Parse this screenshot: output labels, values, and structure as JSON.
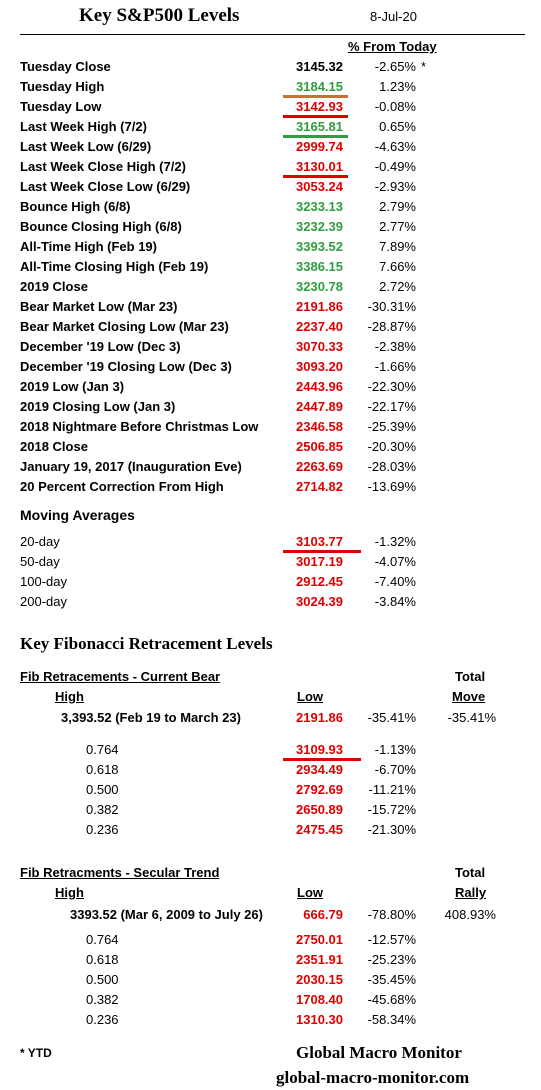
{
  "header": {
    "title": "Key S&P500 Levels",
    "date": "8-Jul-20",
    "pct_header": "% From Today"
  },
  "levels": [
    {
      "label": "Tuesday Close",
      "value": "3145.32",
      "pct": "-2.65%",
      "note": "*",
      "color": "black",
      "underline": ""
    },
    {
      "label": "Tuesday High",
      "value": "3184.15",
      "pct": "1.23%",
      "color": "green",
      "underline": "#c87137"
    },
    {
      "label": "Tuesday Low",
      "value": "3142.93",
      "pct": "-0.08%",
      "color": "red",
      "underline": "#e00000"
    },
    {
      "label": "Last Week High (7/2)",
      "value": "3165.81",
      "pct": "0.65%",
      "color": "green",
      "underline": "#2e9e3e"
    },
    {
      "label": "Last Week Low  (6/29)",
      "value": "2999.74",
      "pct": "-4.63%",
      "color": "red",
      "underline": ""
    },
    {
      "label": "Last Week Close High (7/2)",
      "value": "3130.01",
      "pct": "-0.49%",
      "color": "red",
      "underline": "#e00000"
    },
    {
      "label": "Last Week Close Low  (6/29)",
      "value": "3053.24",
      "pct": "-2.93%",
      "color": "red",
      "underline": ""
    },
    {
      "label": "Bounce High (6/8)",
      "value": "3233.13",
      "pct": "2.79%",
      "color": "green",
      "underline": ""
    },
    {
      "label": "Bounce Closing High  (6/8)",
      "value": "3232.39",
      "pct": "2.77%",
      "color": "green",
      "underline": ""
    },
    {
      "label": "All-Time High (Feb 19)",
      "value": "3393.52",
      "pct": "7.89%",
      "color": "green",
      "underline": ""
    },
    {
      "label": "All-Time Closing High (Feb 19)",
      "value": "3386.15",
      "pct": "7.66%",
      "color": "green",
      "underline": ""
    },
    {
      "label": "2019 Close",
      "value": "3230.78",
      "pct": "2.72%",
      "color": "green",
      "underline": ""
    },
    {
      "label": "Bear Market Low (Mar 23)",
      "value": "2191.86",
      "pct": "-30.31%",
      "color": "red",
      "underline": ""
    },
    {
      "label": "Bear Market Closing Low (Mar 23)",
      "value": "2237.40",
      "pct": "-28.87%",
      "color": "red",
      "underline": ""
    },
    {
      "label": "December '19 Low (Dec 3)",
      "value": "3070.33",
      "pct": "-2.38%",
      "color": "red",
      "underline": ""
    },
    {
      "label": "December '19 Closing Low  (Dec 3)",
      "value": "3093.20",
      "pct": "-1.66%",
      "color": "red",
      "underline": ""
    },
    {
      "label": "2019 Low  (Jan 3)",
      "value": "2443.96",
      "pct": "-22.30%",
      "color": "red",
      "underline": ""
    },
    {
      "label": "2019 Closing Low (Jan 3)",
      "value": "2447.89",
      "pct": "-22.17%",
      "color": "red",
      "underline": ""
    },
    {
      "label": "2018 Nightmare Before Christmas Low",
      "value": "2346.58",
      "pct": "-25.39%",
      "color": "red",
      "underline": ""
    },
    {
      "label": "2018 Close",
      "value": "2506.85",
      "pct": "-20.30%",
      "color": "red",
      "underline": ""
    },
    {
      "label": "January 19, 2017 (Inauguration Eve)",
      "value": "2263.69",
      "pct": "-28.03%",
      "color": "red",
      "underline": ""
    },
    {
      "label": "20 Percent Correction From High",
      "value": "2714.82",
      "pct": "-13.69%",
      "color": "red",
      "underline": ""
    }
  ],
  "moving_averages": {
    "title": "Moving Averages",
    "rows": [
      {
        "label": "20-day",
        "value": "3103.77",
        "pct": "-1.32%",
        "underline": "#e00000"
      },
      {
        "label": "50-day",
        "value": "3017.19",
        "pct": "-4.07%",
        "underline": ""
      },
      {
        "label": "100-day",
        "value": "2912.45",
        "pct": "-7.40%",
        "underline": ""
      },
      {
        "label": "200-day",
        "value": "3024.39",
        "pct": "-3.84%",
        "underline": ""
      }
    ]
  },
  "fib_title": "Key Fibonacci Retracement Levels",
  "fib_bear": {
    "title": "Fib Retracements - Current Bear",
    "high_label": "High",
    "low_label": "Low",
    "total_label1": "Total",
    "total_label2": "Move",
    "main": {
      "high": "3,393.52  (Feb 19 to March 23)",
      "low": "2191.86",
      "pct": "-35.41%",
      "total": "-35.41%"
    },
    "rows": [
      {
        "ratio": "0.764",
        "value": "3109.93",
        "pct": "-1.13%",
        "underline": "#e00000"
      },
      {
        "ratio": "0.618",
        "value": "2934.49",
        "pct": "-6.70%",
        "underline": ""
      },
      {
        "ratio": "0.500",
        "value": "2792.69",
        "pct": "-11.21%",
        "underline": ""
      },
      {
        "ratio": "0.382",
        "value": "2650.89",
        "pct": "-15.72%",
        "underline": ""
      },
      {
        "ratio": "0.236",
        "value": "2475.45",
        "pct": "-21.30%",
        "underline": ""
      }
    ]
  },
  "fib_secular": {
    "title": "Fib Retracments - Secular Trend",
    "high_label": "High",
    "low_label": "Low",
    "total_label1": "Total",
    "total_label2": "Rally",
    "main": {
      "high": "3393.52  (Mar 6, 2009  to July 26)",
      "low": "666.79",
      "pct": "-78.80%",
      "total": "408.93%"
    },
    "rows": [
      {
        "ratio": "0.764",
        "value": "2750.01",
        "pct": "-12.57%",
        "underline": ""
      },
      {
        "ratio": "0.618",
        "value": "2351.91",
        "pct": "-25.23%",
        "underline": ""
      },
      {
        "ratio": "0.500",
        "value": "2030.15",
        "pct": "-35.45%",
        "underline": ""
      },
      {
        "ratio": "0.382",
        "value": "1708.40",
        "pct": "-45.68%",
        "underline": ""
      },
      {
        "ratio": "0.236",
        "value": "1310.30",
        "pct": "-58.34%",
        "underline": ""
      }
    ]
  },
  "footer": {
    "note": "* YTD",
    "brand": "Global Macro Monitor",
    "url": "global-macro-monitor.com"
  }
}
